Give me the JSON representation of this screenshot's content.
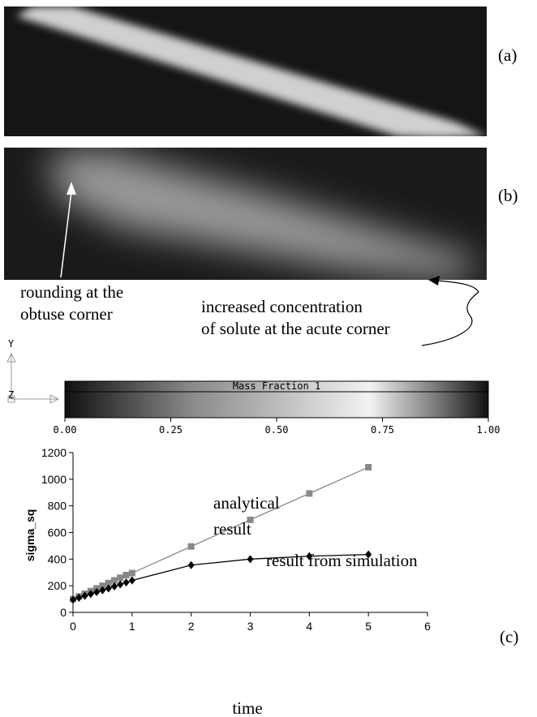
{
  "panel_labels": [
    "(a)",
    "(b)",
    "(c)"
  ],
  "image_annotations": [
    [
      "rounding at the",
      "obtuse corner"
    ],
    [
      "increased concentration",
      "of solute at the acute corner"
    ]
  ],
  "axis_triad": [
    "Y",
    "Z"
  ],
  "colorbar": {
    "title": "Mass Fraction 1",
    "xlim": [
      0,
      1
    ],
    "xticks": [
      {
        "value": 0,
        "label": "0.00"
      },
      {
        "value": 0.25,
        "label": "0.25"
      },
      {
        "value": 0.5,
        "label": "0.50"
      },
      {
        "value": 0.75,
        "label": "0.75"
      },
      {
        "value": 1,
        "label": "1.00"
      }
    ]
  },
  "chart_data": {
    "type": "line",
    "x_label": "time",
    "y_label": "sigma_sq",
    "x": [
      0,
      0.1,
      0.2,
      0.3,
      0.4,
      0.5,
      0.6,
      0.7,
      0.8,
      0.9,
      1,
      2,
      3,
      4,
      5
    ],
    "series": [
      {
        "color": "#888888",
        "marker": "square",
        "values": [
          100,
          120,
          140,
          160,
          180,
          200,
          220,
          240,
          260,
          280,
          295,
          495,
          695,
          893,
          1090
        ]
      },
      {
        "color": "#000000",
        "marker": "diamond",
        "values": [
          95,
          110,
          124,
          138,
          152,
          166,
          180,
          195,
          210,
          225,
          240,
          355,
          400,
          422,
          435
        ]
      }
    ],
    "annotations": [
      "analytical",
      "result",
      "result from simulation"
    ],
    "xlim": [
      0,
      6
    ],
    "xticks": [
      0,
      1,
      2,
      3,
      4,
      5,
      6
    ],
    "ylim": [
      0,
      1200
    ],
    "yticks": [
      0,
      200,
      400,
      600,
      800,
      1000,
      1200
    ]
  }
}
